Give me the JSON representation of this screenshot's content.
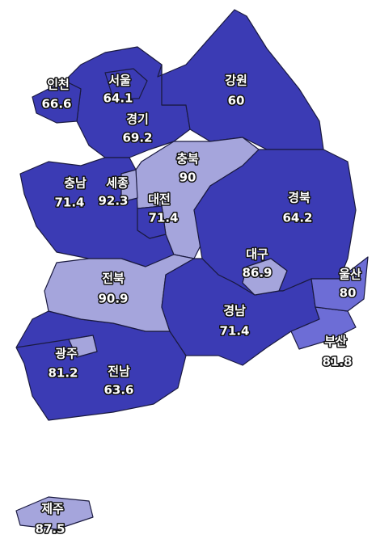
{
  "regions": [
    {
      "name": "인천",
      "value": 66.6,
      "color": "#3b3bb4"
    },
    {
      "name": "서울",
      "value": 64.1,
      "color": "#3b3bb4"
    },
    {
      "name": "경기",
      "value": 69.2,
      "color": "#3b3bb4"
    },
    {
      "name": "강원",
      "value": 60,
      "color": "#3b3bb4"
    },
    {
      "name": "충북",
      "value": 90,
      "color": "#a5a5dc"
    },
    {
      "name": "충남",
      "value": 71.4,
      "color": "#3b3bb4"
    },
    {
      "name": "세종",
      "value": 92.3,
      "color": "#a5a5dc"
    },
    {
      "name": "대전",
      "value": 71.4,
      "color": "#3b3bb4"
    },
    {
      "name": "경북",
      "value": 64.2,
      "color": "#3b3bb4"
    },
    {
      "name": "대구",
      "value": 86.9,
      "color": "#a5a5dc"
    },
    {
      "name": "울산",
      "value": 80,
      "color": "#6d6dd6"
    },
    {
      "name": "전북",
      "value": 90.9,
      "color": "#a5a5dc"
    },
    {
      "name": "경남",
      "value": 71.4,
      "color": "#3b3bb4"
    },
    {
      "name": "부산",
      "value": 81.8,
      "color": "#6d6dd6"
    },
    {
      "name": "광주",
      "value": 81.2,
      "color": "#a5a5dc"
    },
    {
      "name": "전남",
      "value": 63.6,
      "color": "#3b3bb4"
    },
    {
      "name": "제주",
      "value": 87.5,
      "color": "#a5a5dc"
    }
  ]
}
